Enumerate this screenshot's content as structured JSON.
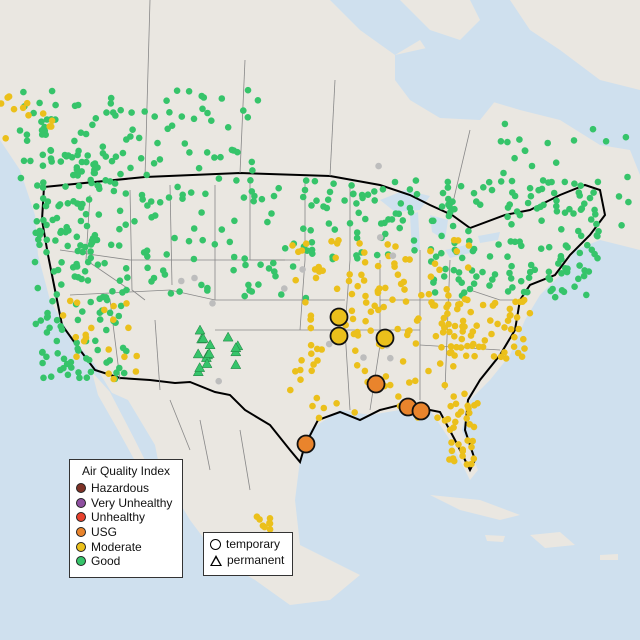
{
  "colors": {
    "water": "#cfe0ee",
    "land": "#eae7e1",
    "land_light": "#f3f1ed",
    "borders": "#888888",
    "us_outline": "#000000",
    "Hazardous": "#7e3226",
    "Very Unhealthy": "#8e4fa0",
    "Unhealthy": "#e8412d",
    "USG": "#e9842c",
    "Moderate": "#ebc01b",
    "Good": "#36c46a",
    "No data": "#bdbdbd"
  },
  "legend": {
    "title": "Air Quality Index",
    "items": [
      {
        "label": "Hazardous",
        "key": "Hazardous"
      },
      {
        "label": "Very Unhealthy",
        "key": "Very Unhealthy"
      },
      {
        "label": "Unhealthy",
        "key": "Unhealthy"
      },
      {
        "label": "USG",
        "key": "USG"
      },
      {
        "label": "Moderate",
        "key": "Moderate"
      },
      {
        "label": "Good",
        "key": "Good"
      }
    ]
  },
  "shape_legend": {
    "temporary": "temporary",
    "permanent": "permanent"
  },
  "monitors": {
    "large": [
      {
        "category": "Moderate",
        "type": "temporary",
        "id": "ozarks-n"
      },
      {
        "category": "Moderate",
        "type": "temporary",
        "id": "ozarks-s"
      },
      {
        "category": "Moderate",
        "type": "temporary",
        "id": "memphis"
      },
      {
        "category": "USG",
        "type": "temporary",
        "id": "mississippi"
      },
      {
        "category": "USG",
        "type": "temporary",
        "id": "gulf-1"
      },
      {
        "category": "USG",
        "type": "temporary",
        "id": "gulf-2"
      },
      {
        "category": "USG",
        "type": "temporary",
        "id": "houston"
      }
    ]
  }
}
